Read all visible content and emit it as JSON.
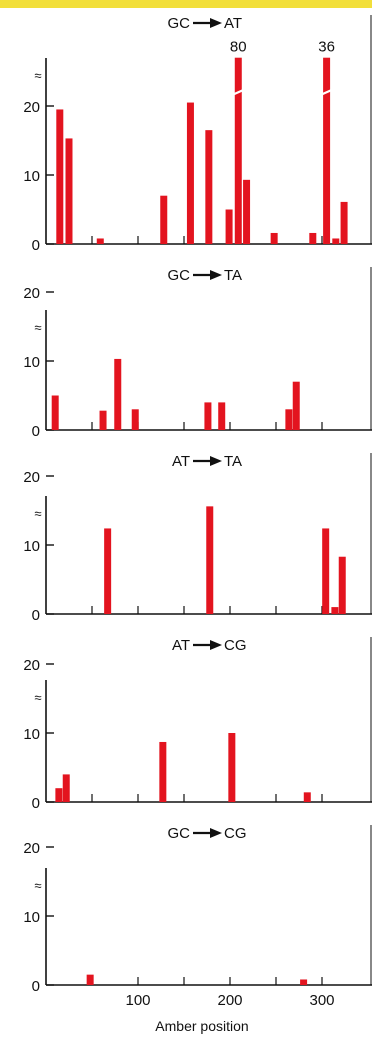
{
  "figure": {
    "xlabel": "Amber position",
    "x_ticks": [
      100,
      200,
      300
    ],
    "y_ticks": [
      0,
      10,
      20
    ],
    "axis_break_symbol": "≈",
    "bar_color": "#e3141f",
    "accent_color": "#f2df3a"
  },
  "chart_data": [
    {
      "type": "bar",
      "title": "GC→AT",
      "title_parts": [
        "GC",
        "AT"
      ],
      "xlabel": "",
      "ylabel": "",
      "xlim": [
        0,
        345
      ],
      "ylim": [
        0,
        27
      ],
      "axis_break": true,
      "bars": [
        {
          "x": 15,
          "value": 19.5
        },
        {
          "x": 25,
          "value": 15.3
        },
        {
          "x": 59,
          "value": 0.8
        },
        {
          "x": 128,
          "value": 7
        },
        {
          "x": 157,
          "value": 20.5
        },
        {
          "x": 177,
          "value": 16.5
        },
        {
          "x": 199,
          "value": 5
        },
        {
          "x": 209,
          "value": 80,
          "truncated": true,
          "label": "80"
        },
        {
          "x": 218,
          "value": 9.3
        },
        {
          "x": 248,
          "value": 1.6
        },
        {
          "x": 290,
          "value": 1.6
        },
        {
          "x": 305,
          "value": 36,
          "truncated": true,
          "label": "36"
        },
        {
          "x": 315,
          "value": 0.8
        },
        {
          "x": 324,
          "value": 6.1
        }
      ]
    },
    {
      "type": "bar",
      "title": "GC→TA",
      "title_parts": [
        "GC",
        "TA"
      ],
      "xlabel": "",
      "ylabel": "",
      "xlim": [
        0,
        345
      ],
      "ylim": [
        0,
        24
      ],
      "axis_break": true,
      "bars": [
        {
          "x": 10,
          "value": 5
        },
        {
          "x": 62,
          "value": 2.8
        },
        {
          "x": 78,
          "value": 10.3
        },
        {
          "x": 97,
          "value": 3
        },
        {
          "x": 176,
          "value": 4
        },
        {
          "x": 191,
          "value": 4
        },
        {
          "x": 264,
          "value": 3
        },
        {
          "x": 272,
          "value": 7
        }
      ]
    },
    {
      "type": "bar",
      "title": "AT→TA",
      "title_parts": [
        "AT",
        "TA"
      ],
      "xlabel": "",
      "ylabel": "",
      "xlim": [
        0,
        345
      ],
      "ylim": [
        0,
        24
      ],
      "axis_break": true,
      "bars": [
        {
          "x": 67,
          "value": 12.4
        },
        {
          "x": 178,
          "value": 15.6
        },
        {
          "x": 304,
          "value": 12.4
        },
        {
          "x": 314,
          "value": 1
        },
        {
          "x": 322,
          "value": 8.3
        }
      ]
    },
    {
      "type": "bar",
      "title": "AT→CG",
      "title_parts": [
        "AT",
        "CG"
      ],
      "xlabel": "",
      "ylabel": "",
      "xlim": [
        0,
        345
      ],
      "ylim": [
        0,
        24
      ],
      "axis_break": true,
      "bars": [
        {
          "x": 14,
          "value": 2
        },
        {
          "x": 22,
          "value": 4
        },
        {
          "x": 127,
          "value": 8.7
        },
        {
          "x": 202,
          "value": 10
        },
        {
          "x": 284,
          "value": 1.4
        }
      ]
    },
    {
      "type": "bar",
      "title": "GC→CG",
      "title_parts": [
        "GC",
        "CG"
      ],
      "xlabel": "Amber position",
      "ylabel": "",
      "xlim": [
        0,
        345
      ],
      "ylim": [
        0,
        24
      ],
      "axis_break": true,
      "bars": [
        {
          "x": 48,
          "value": 1.5
        },
        {
          "x": 280,
          "value": 0.8
        }
      ]
    }
  ]
}
